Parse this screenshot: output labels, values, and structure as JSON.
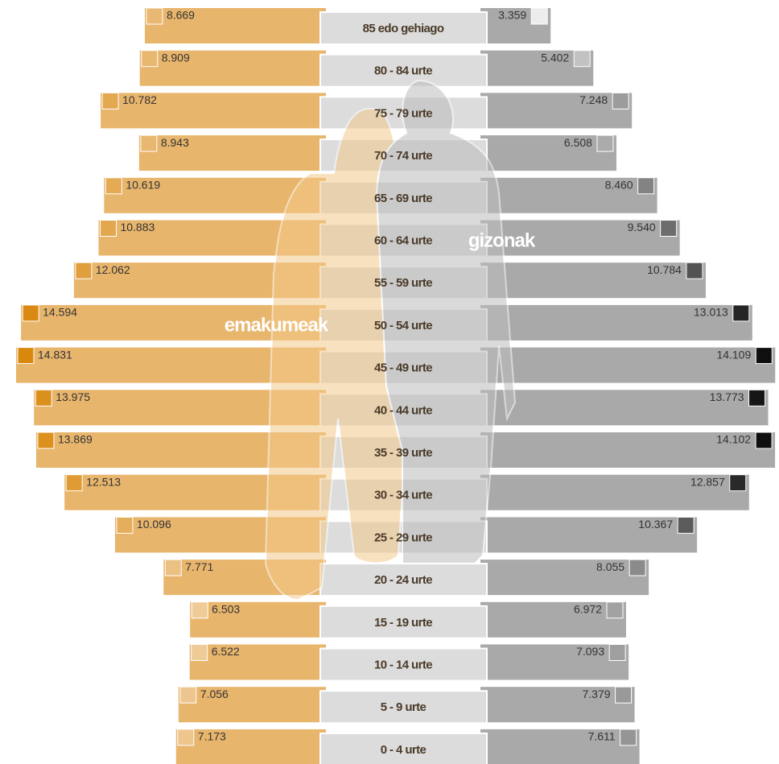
{
  "chart_data": {
    "type": "pyramid",
    "categories": [
      "85 edo gehiago",
      "80 - 84 urte",
      "75 - 79 urte",
      "70 - 74 urte",
      "65 - 69 urte",
      "60 - 64 urte",
      "55 - 59 urte",
      "50 - 54 urte",
      "45 - 49 urte",
      "40 - 44 urte",
      "35 - 39 urte",
      "30 - 34 urte",
      "25 - 29 urte",
      "20 - 24 urte",
      "15 - 19 urte",
      "10 - 14 urte",
      "5 - 9 urte",
      "0 - 4 urte"
    ],
    "series": [
      {
        "name": "emakumeak",
        "color": "#e8b56c",
        "values": [
          8669,
          8909,
          10782,
          8943,
          10619,
          10883,
          12062,
          14594,
          14831,
          13975,
          13869,
          12513,
          10096,
          7771,
          6503,
          6522,
          7056,
          7173
        ],
        "value_labels": [
          "8.669",
          "8.909",
          "10.782",
          "8.943",
          "10.619",
          "10.883",
          "12.062",
          "14.594",
          "14.831",
          "13.975",
          "13.869",
          "12.513",
          "10.096",
          "7.771",
          "6.503",
          "6.522",
          "7.056",
          "7.173"
        ]
      },
      {
        "name": "gizonak",
        "color": "#a9a9a9",
        "values": [
          3359,
          5402,
          7248,
          6508,
          8460,
          9540,
          10784,
          13013,
          14109,
          13773,
          14102,
          12857,
          10367,
          8055,
          6972,
          7093,
          7379,
          7611
        ],
        "value_labels": [
          "3.359",
          "5.402",
          "7.248",
          "6.508",
          "8.460",
          "9.540",
          "10.784",
          "13.013",
          "14.109",
          "13.773",
          "14.102",
          "12.857",
          "10.367",
          "8.055",
          "6.972",
          "7.093",
          "7.379",
          "7.611"
        ]
      }
    ]
  }
}
